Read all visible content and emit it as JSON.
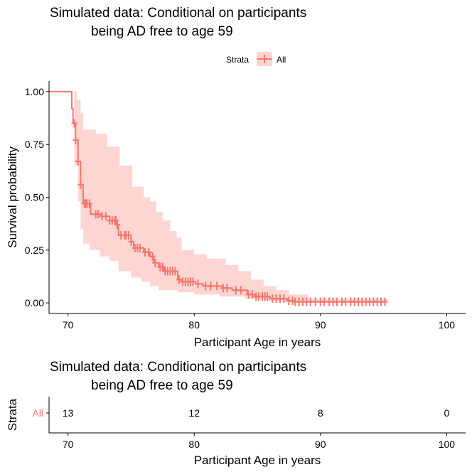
{
  "colors": {
    "series": "#F8766D",
    "ribbon": "#F8766D"
  },
  "legend": {
    "title": "Strata",
    "label": "All",
    "placement": "top"
  },
  "chart_data": [
    {
      "type": "line",
      "subtype": "kaplan-meier",
      "title_lines": [
        "Simulated data: Conditional on participants",
        "being AD free to age 59"
      ],
      "xlabel": "Participant Age in years",
      "ylabel": "Survival probability",
      "xlim": [
        68.5,
        101.5
      ],
      "ylim": [
        -0.05,
        1.05
      ],
      "xticks": [
        "70",
        "80",
        "90",
        "100"
      ],
      "yticks": [
        "0.00",
        "0.25",
        "0.50",
        "0.75",
        "1.00"
      ],
      "series": [
        {
          "name": "All",
          "step_points": [
            [
              68.5,
              1.0
            ],
            [
              70.3,
              1.0
            ],
            [
              70.3,
              0.92
            ],
            [
              70.4,
              0.85
            ],
            [
              70.6,
              0.77
            ],
            [
              70.8,
              0.67
            ],
            [
              71.0,
              0.56
            ],
            [
              71.2,
              0.47
            ],
            [
              71.7,
              0.47
            ],
            [
              71.8,
              0.42
            ],
            [
              72.5,
              0.42
            ],
            [
              72.6,
              0.41
            ],
            [
              73.2,
              0.41
            ],
            [
              73.3,
              0.39
            ],
            [
              73.9,
              0.37
            ],
            [
              74.0,
              0.32
            ],
            [
              74.8,
              0.32
            ],
            [
              75.0,
              0.29
            ],
            [
              75.2,
              0.26
            ],
            [
              75.8,
              0.26
            ],
            [
              76.0,
              0.24
            ],
            [
              76.5,
              0.22
            ],
            [
              76.8,
              0.19
            ],
            [
              77.2,
              0.17
            ],
            [
              77.6,
              0.15
            ],
            [
              78.6,
              0.15
            ],
            [
              78.7,
              0.11
            ],
            [
              79.0,
              0.1
            ],
            [
              80.0,
              0.1
            ],
            [
              80.1,
              0.09
            ],
            [
              80.6,
              0.09
            ],
            [
              80.7,
              0.08
            ],
            [
              82.0,
              0.08
            ],
            [
              82.2,
              0.07
            ],
            [
              83.0,
              0.06
            ],
            [
              84.2,
              0.04
            ],
            [
              84.8,
              0.03
            ],
            [
              86.0,
              0.02
            ],
            [
              87.4,
              0.01
            ],
            [
              88.0,
              0.005
            ],
            [
              95.3,
              0.005
            ]
          ],
          "ci_upper": [
            [
              68.5,
              1.0
            ],
            [
              70.3,
              1.0
            ],
            [
              70.5,
              1.0
            ],
            [
              70.7,
              0.96
            ],
            [
              71.0,
              0.9
            ],
            [
              71.2,
              0.82
            ],
            [
              72.0,
              0.82
            ],
            [
              72.2,
              0.8
            ],
            [
              72.9,
              0.8
            ],
            [
              73.1,
              0.74
            ],
            [
              74.0,
              0.74
            ],
            [
              74.1,
              0.65
            ],
            [
              74.9,
              0.65
            ],
            [
              75.1,
              0.55
            ],
            [
              75.9,
              0.55
            ],
            [
              76.0,
              0.5
            ],
            [
              76.5,
              0.48
            ],
            [
              77.0,
              0.43
            ],
            [
              77.5,
              0.39
            ],
            [
              78.1,
              0.34
            ],
            [
              78.6,
              0.31
            ],
            [
              79.0,
              0.25
            ],
            [
              80.0,
              0.23
            ],
            [
              81.0,
              0.21
            ],
            [
              82.5,
              0.18
            ],
            [
              83.5,
              0.15
            ],
            [
              84.5,
              0.11
            ],
            [
              85.5,
              0.08
            ],
            [
              86.5,
              0.06
            ],
            [
              87.5,
              0.04
            ],
            [
              89.0,
              0.02
            ],
            [
              95.3,
              0.01
            ]
          ],
          "ci_lower": [
            [
              68.5,
              1.0
            ],
            [
              70.3,
              1.0
            ],
            [
              70.5,
              0.65
            ],
            [
              70.8,
              0.48
            ],
            [
              71.0,
              0.35
            ],
            [
              71.2,
              0.28
            ],
            [
              71.7,
              0.25
            ],
            [
              72.5,
              0.22
            ],
            [
              73.3,
              0.2
            ],
            [
              74.0,
              0.15
            ],
            [
              75.0,
              0.12
            ],
            [
              75.8,
              0.1
            ],
            [
              76.5,
              0.08
            ],
            [
              77.2,
              0.06
            ],
            [
              78.7,
              0.05
            ],
            [
              80.0,
              0.04
            ],
            [
              82.0,
              0.03
            ],
            [
              84.0,
              0.02
            ],
            [
              85.5,
              0.01
            ],
            [
              87.0,
              0.003
            ],
            [
              95.3,
              0.0
            ]
          ],
          "censor_x": [
            70.5,
            70.6,
            70.8,
            71.0,
            71.3,
            71.4,
            71.5,
            71.7,
            72.2,
            72.4,
            72.7,
            73.0,
            73.3,
            73.5,
            73.7,
            73.8,
            73.9,
            74.2,
            74.5,
            74.6,
            74.8,
            75.0,
            75.3,
            75.5,
            75.7,
            76.1,
            76.4,
            76.7,
            76.9,
            77.3,
            77.5,
            77.7,
            77.9,
            78.1,
            78.3,
            78.5,
            78.8,
            79.1,
            79.3,
            79.5,
            79.7,
            79.9,
            80.3,
            80.9,
            81.3,
            81.8,
            82.3,
            82.6,
            83.3,
            83.7,
            84.3,
            84.6,
            84.9,
            85.1,
            85.4,
            85.6,
            85.8,
            86.2,
            86.5,
            86.8,
            87.1,
            87.5,
            87.8,
            88.0,
            88.3,
            88.6,
            88.9,
            89.2,
            89.6,
            90.0,
            90.3,
            90.7,
            91.0,
            91.3,
            91.7,
            92.0,
            92.4,
            92.7,
            93.0,
            93.3,
            93.6,
            93.9,
            94.2,
            94.5,
            94.8,
            95.1
          ]
        }
      ],
      "grid": false
    },
    {
      "type": "table",
      "subtype": "risk-table",
      "title_lines": [
        "Simulated data: Conditional on participants",
        "being AD free to age 59"
      ],
      "xlabel": "Participant Age in years",
      "ylabel": "Strata",
      "row_label": "All",
      "xlim": [
        68.5,
        101.5
      ],
      "xticks": [
        "70",
        "80",
        "90",
        "100"
      ],
      "x": [
        70,
        80,
        90,
        100
      ],
      "values": [
        "13",
        "12",
        "8",
        "0"
      ]
    }
  ]
}
